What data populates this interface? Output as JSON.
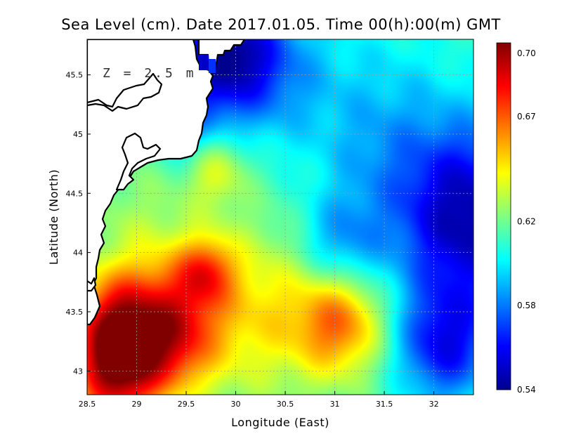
{
  "title": "Sea Level (cm). Date 2017.01.05. Time 00(h):00(m) GMT",
  "depth_annotation": "Z = 2.5 m",
  "axes": {
    "xlabel": "Longitude (East)",
    "ylabel": "Latitude (North)",
    "xlim": [
      28.5,
      32.4
    ],
    "ylim": [
      42.8,
      45.8
    ],
    "xticks": [
      {
        "value": 28.5,
        "label": "28.5"
      },
      {
        "value": 29,
        "label": "29"
      },
      {
        "value": 29.5,
        "label": "29.5"
      },
      {
        "value": 30,
        "label": "30"
      },
      {
        "value": 30.5,
        "label": "30.5"
      },
      {
        "value": 31,
        "label": "31"
      },
      {
        "value": 31.5,
        "label": "31.5"
      },
      {
        "value": 32,
        "label": "32"
      }
    ],
    "yticks": [
      {
        "value": 43,
        "label": "43"
      },
      {
        "value": 43.5,
        "label": "43.5"
      },
      {
        "value": 44,
        "label": "44"
      },
      {
        "value": 44.5,
        "label": "44.5"
      },
      {
        "value": 45,
        "label": "45"
      },
      {
        "value": 45.5,
        "label": "45.5"
      }
    ],
    "grid": true
  },
  "colorbar": {
    "min": 0.54,
    "max": 0.705,
    "ticks": [
      {
        "value": 0.7,
        "label": "0.70"
      },
      {
        "value": 0.67,
        "label": "0.67"
      },
      {
        "value": 0.62,
        "label": "0.62"
      },
      {
        "value": 0.58,
        "label": "0.58"
      },
      {
        "value": 0.54,
        "label": "0.54"
      }
    ],
    "colormap": [
      "#00008f",
      "#0000ff",
      "#0080ff",
      "#00ffff",
      "#80ff80",
      "#ffff00",
      "#ff8000",
      "#ff0000",
      "#800000"
    ],
    "placement": "right"
  },
  "field": {
    "background_level": 0.615,
    "features": [
      {
        "lon": 28.8,
        "lat": 43.0,
        "value": 0.695,
        "radius": 0.32
      },
      {
        "lon": 28.75,
        "lat": 43.45,
        "value": 0.665,
        "radius": 0.3
      },
      {
        "lon": 29.3,
        "lat": 43.55,
        "value": 0.655,
        "radius": 0.35
      },
      {
        "lon": 29.7,
        "lat": 43.85,
        "value": 0.655,
        "radius": 0.2
      },
      {
        "lon": 30.2,
        "lat": 43.5,
        "value": 0.645,
        "radius": 0.5
      },
      {
        "lon": 29.4,
        "lat": 43.2,
        "value": 0.65,
        "radius": 0.3
      },
      {
        "lon": 31.05,
        "lat": 43.42,
        "value": 0.665,
        "radius": 0.32
      },
      {
        "lon": 29.8,
        "lat": 44.7,
        "value": 0.64,
        "radius": 0.22
      },
      {
        "lon": 32.35,
        "lat": 44.3,
        "value": 0.545,
        "radius": 0.55
      },
      {
        "lon": 32.1,
        "lat": 43.2,
        "value": 0.565,
        "radius": 0.35
      },
      {
        "lon": 31.05,
        "lat": 44.05,
        "value": 0.585,
        "radius": 0.3
      },
      {
        "lon": 29.85,
        "lat": 45.7,
        "value": 0.555,
        "radius": 0.35
      },
      {
        "lon": 30.3,
        "lat": 45.55,
        "value": 0.585,
        "radius": 0.45
      },
      {
        "lon": 29.5,
        "lat": 45.1,
        "value": 0.59,
        "radius": 0.25
      },
      {
        "lon": 31.5,
        "lat": 45.3,
        "value": 0.6,
        "radius": 0.6
      },
      {
        "lon": 31.3,
        "lat": 44.8,
        "value": 0.605,
        "radius": 0.4
      },
      {
        "lon": 29.0,
        "lat": 44.3,
        "value": 0.625,
        "radius": 0.4
      },
      {
        "lon": 31.6,
        "lat": 43.6,
        "value": 0.615,
        "radius": 0.3
      }
    ]
  }
}
